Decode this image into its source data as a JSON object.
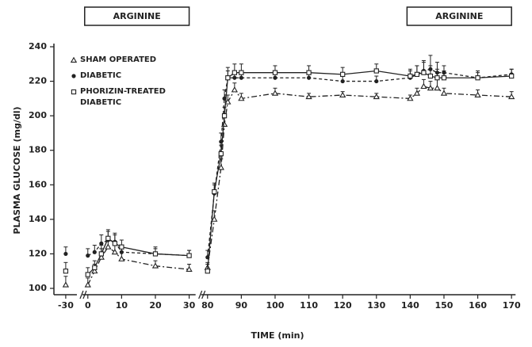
{
  "chart_data": {
    "type": "line",
    "xlabel": "TIME (min)",
    "ylabel": "PLASMA GLUCOSE (mg/dl)",
    "x": [
      -30,
      0,
      2,
      4,
      6,
      8,
      10,
      20,
      30,
      80,
      82,
      84,
      85,
      86,
      88,
      90,
      100,
      110,
      120,
      130,
      140,
      142,
      144,
      146,
      148,
      150,
      160,
      170
    ],
    "series": [
      {
        "name": "SHAM OPERATED",
        "color": "#222222",
        "marker": "triangle",
        "dash": "7 3 2 3",
        "values": [
          102,
          102,
          110,
          118,
          124,
          121,
          117,
          113,
          111,
          112,
          140,
          170,
          195,
          208,
          215,
          210,
          213,
          211,
          212,
          211,
          210,
          213,
          217,
          216,
          216,
          213,
          212,
          211
        ],
        "errors": [
          5,
          4,
          4,
          5,
          5,
          5,
          4,
          3,
          3,
          3,
          5,
          5,
          4,
          4,
          4,
          3,
          3,
          2,
          2,
          2,
          2,
          3,
          4,
          4,
          5,
          3,
          3,
          3
        ]
      },
      {
        "name": "DIABETIC",
        "color": "#222222",
        "marker": "dot",
        "dash": "4 3",
        "values": [
          120,
          119,
          121,
          126,
          128,
          127,
          121,
          120,
          119,
          118,
          155,
          185,
          210,
          222,
          222,
          222,
          222,
          222,
          220,
          220,
          222,
          224,
          226,
          227,
          225,
          225,
          222,
          224
        ],
        "errors": [
          4,
          4,
          4,
          5,
          5,
          5,
          4,
          3,
          3,
          4,
          5,
          5,
          5,
          4,
          4,
          4,
          4,
          3,
          3,
          3,
          4,
          5,
          6,
          8,
          6,
          4,
          3,
          3
        ]
      },
      {
        "name": "PHORIZIN-TREATED DIABETIC",
        "color": "#222222",
        "marker": "square",
        "dash": "none",
        "values": [
          110,
          108,
          112,
          120,
          129,
          126,
          124,
          120,
          119,
          110,
          156,
          178,
          200,
          222,
          225,
          225,
          225,
          225,
          224,
          226,
          223,
          224,
          225,
          223,
          222,
          222,
          222,
          223
        ],
        "errors": [
          5,
          4,
          4,
          5,
          5,
          5,
          4,
          4,
          3,
          4,
          5,
          5,
          5,
          6,
          5,
          5,
          4,
          4,
          4,
          4,
          4,
          5,
          6,
          6,
          5,
          4,
          4,
          4
        ]
      }
    ],
    "xlim": [
      [
        -33.5,
        -26.7
      ],
      [
        -1.6,
        31.9
      ],
      [
        78.1,
        171.2
      ]
    ],
    "xticks": [
      -30,
      0,
      10,
      20,
      30,
      80,
      90,
      100,
      110,
      120,
      130,
      140,
      150,
      160,
      170
    ],
    "ylim": [
      100,
      240
    ],
    "yticks": [
      100,
      120,
      140,
      160,
      180,
      200,
      220,
      240
    ],
    "annotations": [
      {
        "text": "ARGININE",
        "x": [
          0,
          30
        ]
      },
      {
        "text": "ARGININE",
        "x": [
          140,
          170
        ]
      }
    ]
  }
}
